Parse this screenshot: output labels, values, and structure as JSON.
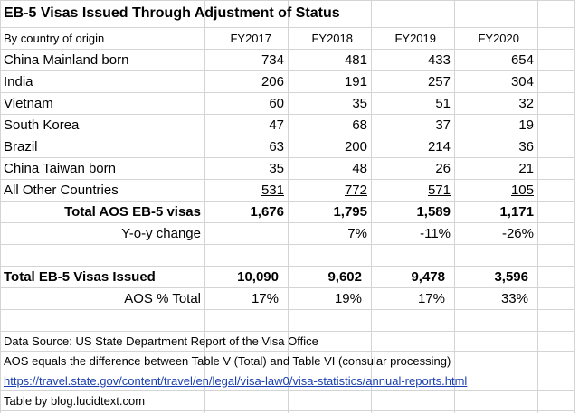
{
  "title": "EB-5 Visas Issued Through Adjustment of Status",
  "header": {
    "label": "By country of origin",
    "years": [
      "FY2017",
      "FY2018",
      "FY2019",
      "FY2020"
    ]
  },
  "countries": [
    {
      "name": "China Mainland born",
      "values": [
        "734",
        "481",
        "433",
        "654"
      ]
    },
    {
      "name": "India",
      "values": [
        "206",
        "191",
        "257",
        "304"
      ]
    },
    {
      "name": "Vietnam",
      "values": [
        "60",
        "35",
        "51",
        "32"
      ]
    },
    {
      "name": "South Korea",
      "values": [
        "47",
        "68",
        "37",
        "19"
      ]
    },
    {
      "name": "Brazil",
      "values": [
        "63",
        "200",
        "214",
        "36"
      ]
    },
    {
      "name": "China Taiwan born",
      "values": [
        "35",
        "48",
        "26",
        "21"
      ]
    },
    {
      "name": "All Other Countries",
      "values": [
        "531",
        "772",
        "571",
        "105"
      ]
    }
  ],
  "total_aos": {
    "label": "Total AOS EB-5 visas",
    "values": [
      "1,676",
      "1,795",
      "1,589",
      "1,171"
    ]
  },
  "yoy": {
    "label": "Y-o-y change",
    "values": [
      "",
      "7%",
      "-11%",
      "-26%"
    ]
  },
  "total_eb5": {
    "label": "Total EB-5 Visas Issued",
    "values": [
      "10,090",
      "9,602",
      "9,478",
      "3,596"
    ]
  },
  "aos_pct": {
    "label": "AOS % Total",
    "values": [
      "17%",
      "19%",
      "17%",
      "33%"
    ]
  },
  "notes": {
    "source": "Data Source: US State Department Report of the Visa Office",
    "aos_def": "AOS equals the difference between Table V (Total) and Table VI (consular processing)",
    "link": "https://travel.state.gov/content/travel/en/legal/visa-law0/visa-statistics/annual-reports.html",
    "credit": "Table by blog.lucidtext.com"
  },
  "colors": {
    "grid": "#d4d4d4",
    "link": "#1a3fb0",
    "text": "#000000"
  }
}
